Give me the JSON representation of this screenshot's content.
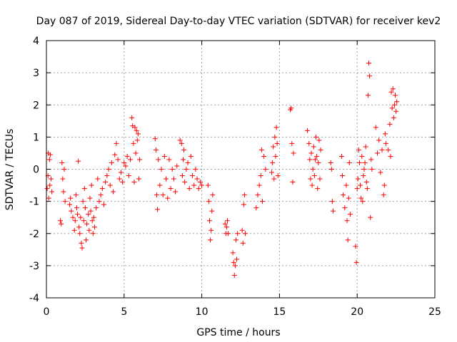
{
  "chart_data": {
    "type": "scatter",
    "title": "Day 087 of 2019, Sidereal Day-to-day VTEC variation (SDTVAR) for receiver kev2",
    "xlabel": "GPS time / hours",
    "ylabel": "SDTVAR / TECUs",
    "xlim": [
      0,
      25
    ],
    "ylim": [
      -4,
      4
    ],
    "xticks": [
      "0",
      "5",
      "10",
      "15",
      "20",
      "25"
    ],
    "yticks": [
      "4",
      "3",
      "2",
      "1",
      "0",
      "-1",
      "-2",
      "-3",
      "-4"
    ],
    "grid": true,
    "marker": "plus",
    "color": "#ff0000",
    "series": [
      {
        "name": "SDTVAR",
        "points": [
          [
            0.05,
            -0.6
          ],
          [
            0.1,
            -0.2
          ],
          [
            0.12,
            0.5
          ],
          [
            0.15,
            -0.9
          ],
          [
            0.2,
            0.3
          ],
          [
            0.22,
            -0.5
          ],
          [
            0.25,
            0.45
          ],
          [
            0.3,
            -0.3
          ],
          [
            0.35,
            -0.7
          ],
          [
            0.9,
            -1.6
          ],
          [
            0.95,
            -1.7
          ],
          [
            1.0,
            0.2
          ],
          [
            1.05,
            -0.3
          ],
          [
            1.1,
            -0.7
          ],
          [
            1.15,
            0.0
          ],
          [
            1.2,
            -1.0
          ],
          [
            1.5,
            -1.1
          ],
          [
            1.55,
            -0.9
          ],
          [
            1.6,
            -1.3
          ],
          [
            1.7,
            -1.5
          ],
          [
            1.8,
            -1.9
          ],
          [
            1.85,
            -1.6
          ],
          [
            1.9,
            -0.8
          ],
          [
            1.95,
            -1.2
          ],
          [
            2.0,
            -1.4
          ],
          [
            2.05,
            0.25
          ],
          [
            2.1,
            -1.8
          ],
          [
            2.15,
            -2.0
          ],
          [
            2.2,
            -1.5
          ],
          [
            2.25,
            -2.3
          ],
          [
            2.3,
            -2.45
          ],
          [
            2.35,
            -1.0
          ],
          [
            2.4,
            -1.6
          ],
          [
            2.45,
            -0.6
          ],
          [
            2.5,
            -1.2
          ],
          [
            2.55,
            -2.2
          ],
          [
            2.6,
            -1.7
          ],
          [
            2.7,
            -1.4
          ],
          [
            2.75,
            -1.9
          ],
          [
            2.8,
            -0.9
          ],
          [
            2.85,
            -1.3
          ],
          [
            2.9,
            -0.5
          ],
          [
            2.95,
            -1.6
          ],
          [
            3.0,
            -2.0
          ],
          [
            3.05,
            -1.5
          ],
          [
            3.1,
            -1.8
          ],
          [
            3.2,
            -1.2
          ],
          [
            3.3,
            -0.3
          ],
          [
            3.4,
            -1.0
          ],
          [
            3.5,
            -0.8
          ],
          [
            3.6,
            -0.6
          ],
          [
            3.7,
            -1.1
          ],
          [
            3.8,
            -0.4
          ],
          [
            3.9,
            -0.2
          ],
          [
            4.0,
            0.0
          ],
          [
            4.1,
            -0.5
          ],
          [
            4.2,
            0.2
          ],
          [
            4.3,
            -0.7
          ],
          [
            4.4,
            0.45
          ],
          [
            4.5,
            0.8
          ],
          [
            4.6,
            0.3
          ],
          [
            4.7,
            -0.3
          ],
          [
            4.8,
            -0.1
          ],
          [
            4.9,
            -0.4
          ],
          [
            5.0,
            0.2
          ],
          [
            5.1,
            0.1
          ],
          [
            5.2,
            0.4
          ],
          [
            5.3,
            -0.2
          ],
          [
            5.4,
            0.3
          ],
          [
            5.5,
            1.6
          ],
          [
            5.55,
            1.35
          ],
          [
            5.6,
            0.8
          ],
          [
            5.65,
            -0.4
          ],
          [
            5.7,
            1.3
          ],
          [
            5.75,
            0.5
          ],
          [
            5.8,
            1.2
          ],
          [
            5.85,
            0.9
          ],
          [
            5.9,
            1.1
          ],
          [
            5.95,
            -0.3
          ],
          [
            6.0,
            0.3
          ],
          [
            7.0,
            0.95
          ],
          [
            7.05,
            0.6
          ],
          [
            7.1,
            -0.8
          ],
          [
            7.15,
            -1.25
          ],
          [
            7.2,
            0.3
          ],
          [
            7.3,
            -0.5
          ],
          [
            7.4,
            0.0
          ],
          [
            7.5,
            -0.8
          ],
          [
            7.6,
            0.4
          ],
          [
            7.7,
            -0.3
          ],
          [
            7.8,
            -0.9
          ],
          [
            7.9,
            0.3
          ],
          [
            8.0,
            -0.6
          ],
          [
            8.1,
            0.0
          ],
          [
            8.2,
            -0.3
          ],
          [
            8.3,
            -0.7
          ],
          [
            8.4,
            0.1
          ],
          [
            8.6,
            0.9
          ],
          [
            8.7,
            0.8
          ],
          [
            8.75,
            -0.2
          ],
          [
            8.8,
            0.3
          ],
          [
            8.85,
            0.6
          ],
          [
            8.9,
            -0.4
          ],
          [
            9.0,
            0.0
          ],
          [
            9.1,
            0.2
          ],
          [
            9.2,
            -0.6
          ],
          [
            9.3,
            0.4
          ],
          [
            9.4,
            -0.2
          ],
          [
            9.5,
            -0.5
          ],
          [
            9.6,
            0.0
          ],
          [
            9.7,
            -0.3
          ],
          [
            9.8,
            -0.6
          ],
          [
            9.9,
            -0.4
          ],
          [
            10.0,
            -0.5
          ],
          [
            10.4,
            -0.5
          ],
          [
            10.45,
            -1.0
          ],
          [
            10.5,
            -1.6
          ],
          [
            10.55,
            -2.2
          ],
          [
            10.6,
            -1.9
          ],
          [
            10.65,
            -1.3
          ],
          [
            10.7,
            -0.8
          ],
          [
            11.5,
            -1.7
          ],
          [
            11.55,
            -2.0
          ],
          [
            11.6,
            -1.8
          ],
          [
            11.65,
            -1.6
          ],
          [
            11.7,
            -2.0
          ],
          [
            12.0,
            -2.6
          ],
          [
            12.05,
            -2.9
          ],
          [
            12.1,
            -3.3
          ],
          [
            12.15,
            -3.0
          ],
          [
            12.2,
            -2.2
          ],
          [
            12.25,
            -2.8
          ],
          [
            12.3,
            -2.0
          ],
          [
            12.6,
            -1.9
          ],
          [
            12.65,
            -2.3
          ],
          [
            12.7,
            -1.1
          ],
          [
            12.75,
            -0.8
          ],
          [
            12.8,
            -2.0
          ],
          [
            13.5,
            -1.2
          ],
          [
            13.6,
            -0.8
          ],
          [
            13.7,
            -0.5
          ],
          [
            13.8,
            -0.2
          ],
          [
            13.85,
            0.6
          ],
          [
            13.9,
            -1.0
          ],
          [
            14.0,
            0.4
          ],
          [
            14.1,
            0.0
          ],
          [
            14.5,
            -0.1
          ],
          [
            14.55,
            0.2
          ],
          [
            14.6,
            0.7
          ],
          [
            14.65,
            -0.3
          ],
          [
            14.7,
            1.0
          ],
          [
            14.75,
            0.4
          ],
          [
            14.8,
            1.3
          ],
          [
            14.85,
            0.8
          ],
          [
            14.9,
            -0.2
          ],
          [
            15.7,
            1.85
          ],
          [
            15.75,
            1.9
          ],
          [
            15.8,
            0.8
          ],
          [
            15.85,
            -0.4
          ],
          [
            15.9,
            0.5
          ],
          [
            16.8,
            1.2
          ],
          [
            16.9,
            0.8
          ],
          [
            16.95,
            0.3
          ],
          [
            17.0,
            -0.3
          ],
          [
            17.05,
            0.5
          ],
          [
            17.1,
            -0.5
          ],
          [
            17.15,
            0.0
          ],
          [
            17.2,
            0.7
          ],
          [
            17.25,
            -0.2
          ],
          [
            17.3,
            0.3
          ],
          [
            17.35,
            1.0
          ],
          [
            17.4,
            0.4
          ],
          [
            17.45,
            -0.6
          ],
          [
            17.5,
            0.2
          ],
          [
            17.55,
            0.9
          ],
          [
            17.6,
            -0.3
          ],
          [
            17.65,
            0.6
          ],
          [
            18.3,
            0.2
          ],
          [
            18.35,
            0.0
          ],
          [
            18.4,
            -1.0
          ],
          [
            18.45,
            -1.3
          ],
          [
            19.0,
            0.4
          ],
          [
            19.05,
            -0.2
          ],
          [
            19.1,
            -0.8
          ],
          [
            19.2,
            -1.2
          ],
          [
            19.3,
            -0.5
          ],
          [
            19.35,
            -1.6
          ],
          [
            19.4,
            -2.2
          ],
          [
            19.45,
            -0.9
          ],
          [
            19.5,
            0.2
          ],
          [
            19.55,
            -1.4
          ],
          [
            19.9,
            -2.4
          ],
          [
            19.95,
            -2.9
          ],
          [
            20.0,
            -0.6
          ],
          [
            20.05,
            -0.3
          ],
          [
            20.1,
            0.6
          ],
          [
            20.15,
            0.2
          ],
          [
            20.2,
            -0.5
          ],
          [
            20.25,
            -0.9
          ],
          [
            20.3,
            0.4
          ],
          [
            20.35,
            -1.0
          ],
          [
            20.4,
            -0.2
          ],
          [
            20.45,
            0.0
          ],
          [
            20.5,
            0.2
          ],
          [
            20.55,
            0.7
          ],
          [
            20.6,
            -0.4
          ],
          [
            20.65,
            -0.6
          ],
          [
            20.7,
            2.3
          ],
          [
            20.75,
            3.3
          ],
          [
            20.8,
            2.9
          ],
          [
            20.85,
            -1.5
          ],
          [
            20.9,
            0.3
          ],
          [
            20.95,
            0.0
          ],
          [
            21.2,
            1.3
          ],
          [
            21.3,
            0.5
          ],
          [
            21.4,
            0.9
          ],
          [
            21.5,
            -0.1
          ],
          [
            21.6,
            0.6
          ],
          [
            21.7,
            -0.8
          ],
          [
            21.75,
            -0.5
          ],
          [
            21.8,
            1.1
          ],
          [
            21.85,
            0.8
          ],
          [
            22.0,
            0.6
          ],
          [
            22.1,
            1.4
          ],
          [
            22.15,
            0.4
          ],
          [
            22.2,
            2.4
          ],
          [
            22.25,
            1.9
          ],
          [
            22.3,
            2.5
          ],
          [
            22.35,
            1.6
          ],
          [
            22.4,
            2.0
          ],
          [
            22.45,
            2.3
          ],
          [
            22.5,
            1.8
          ],
          [
            22.55,
            2.1
          ]
        ]
      }
    ]
  }
}
